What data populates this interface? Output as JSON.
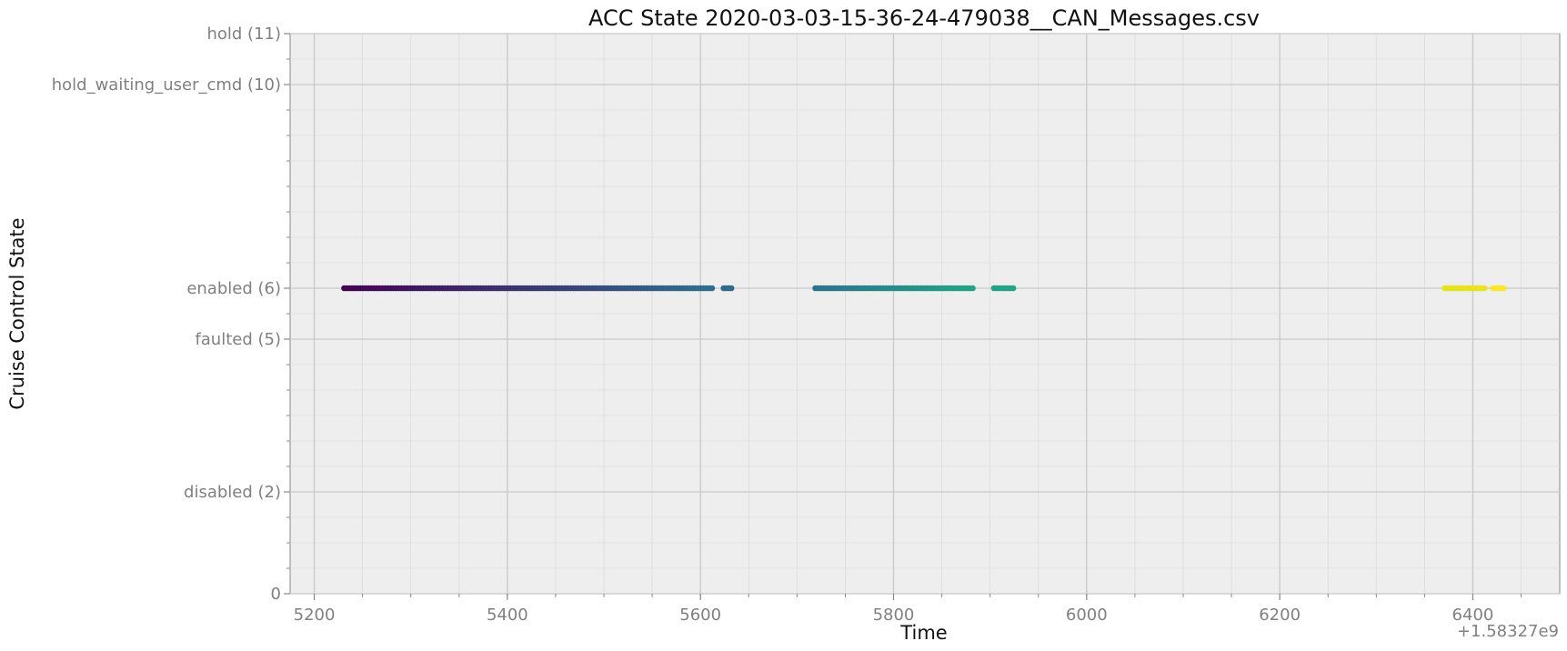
{
  "chart_data": {
    "type": "scatter",
    "title": "ACC State 2020-03-03-15-36-24-479038__CAN_Messages.csv",
    "xlabel": "Time",
    "ylabel": "Cruise Control State",
    "x_offset_label": "+1.58327e9",
    "xlim": [
      5175,
      6490
    ],
    "ylim": [
      0,
      11
    ],
    "x_ticks": [
      {
        "value": 5200,
        "label": "5200"
      },
      {
        "value": 5400,
        "label": "5400"
      },
      {
        "value": 5600,
        "label": "5600"
      },
      {
        "value": 5800,
        "label": "5800"
      },
      {
        "value": 6000,
        "label": "6000"
      },
      {
        "value": 6200,
        "label": "6200"
      },
      {
        "value": 6400,
        "label": "6400"
      }
    ],
    "y_ticks": [
      {
        "value": 0,
        "label": "0"
      },
      {
        "value": 2,
        "label": "disabled (2)"
      },
      {
        "value": 5,
        "label": "faulted (5)"
      },
      {
        "value": 6,
        "label": "enabled (6)"
      },
      {
        "value": 10,
        "label": "hold_waiting_user_cmd (10)"
      },
      {
        "value": 11,
        "label": "hold (11)"
      }
    ],
    "grid": true,
    "minor_grid": true,
    "colormap": "viridis",
    "series": [
      {
        "x_start": 5231,
        "x_end": 5612,
        "y": 6,
        "color_start": "#440154",
        "color_end": "#2e6f8e"
      },
      {
        "x_start": 5624,
        "x_end": 5632,
        "y": 6,
        "color_start": "#2f6b8e",
        "color_end": "#2f6b8e"
      },
      {
        "x_start": 5719,
        "x_end": 5882,
        "y": 6,
        "color_start": "#2c728e",
        "color_end": "#21a585"
      },
      {
        "x_start": 5904,
        "x_end": 5924,
        "y": 6,
        "color_start": "#20a386",
        "color_end": "#22a884"
      },
      {
        "x_start": 6371,
        "x_end": 6390,
        "y": 6,
        "color_start": "#e5e419",
        "color_end": "#e5e419"
      },
      {
        "x_start": 6394,
        "x_end": 6412,
        "y": 6,
        "color_start": "#e8e419",
        "color_end": "#eae51a"
      },
      {
        "x_start": 6421,
        "x_end": 6432,
        "y": 6,
        "color_start": "#fde725",
        "color_end": "#fde725"
      }
    ]
  }
}
